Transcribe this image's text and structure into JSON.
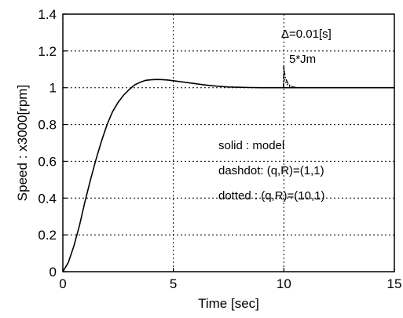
{
  "chart_data": {
    "type": "line",
    "xlabel": "Time [sec]",
    "ylabel": "Speed  : x3000[rpm]",
    "xlim": [
      0,
      15
    ],
    "ylim": [
      0,
      1.4
    ],
    "x_ticks": [
      0,
      5,
      10,
      15
    ],
    "y_ticks": [
      0,
      0.2,
      0.4,
      0.6,
      0.8,
      1,
      1.2,
      1.4
    ],
    "x_tick_labels": [
      "0",
      "5",
      "10",
      "15"
    ],
    "y_tick_labels": [
      "0",
      "0.2",
      "0.4",
      "0.6",
      "0.8",
      "1",
      "1.2",
      "1.4"
    ],
    "grid": true,
    "annotations": {
      "delta": "Δ=0.01[s]",
      "jm": "5*Jm",
      "legend_solid": "solid  : model",
      "legend_dashdot": "dashdot: (q,R)=(1,1)",
      "legend_dotted": "dotted  : (q,R)=(10,1)"
    },
    "series": [
      {
        "style": "solid",
        "x": [
          0,
          0.25,
          0.5,
          0.75,
          1,
          1.25,
          1.5,
          1.75,
          2,
          2.25,
          2.5,
          2.75,
          3,
          3.25,
          3.5,
          3.75,
          4,
          4.25,
          4.5,
          4.75,
          5,
          5.5,
          6,
          6.5,
          7,
          7.5,
          8,
          8.5,
          9,
          9.5,
          10,
          11,
          12,
          13,
          14,
          15
        ],
        "y": [
          0,
          0.05,
          0.14,
          0.25,
          0.38,
          0.5,
          0.61,
          0.71,
          0.8,
          0.87,
          0.92,
          0.96,
          0.99,
          1.015,
          1.03,
          1.04,
          1.043,
          1.045,
          1.044,
          1.042,
          1.038,
          1.03,
          1.022,
          1.014,
          1.008,
          1.004,
          1.002,
          1.001,
          1.0,
          1.0,
          1.0,
          1.0,
          1.0,
          1.0,
          1.0,
          1.0
        ]
      },
      {
        "style": "dashdot",
        "x": [
          9.98,
          10.0,
          10.02,
          10.06,
          10.12,
          10.2,
          10.3,
          10.4,
          10.5,
          10.65,
          10.8
        ],
        "y": [
          1.0,
          1.12,
          1.09,
          1.06,
          1.04,
          1.02,
          1.01,
          1.004,
          1.002,
          1.0,
          1.0
        ]
      },
      {
        "style": "dotted",
        "x": [
          9.98,
          10.0,
          10.03,
          10.08,
          10.15,
          10.25,
          10.35,
          10.5,
          10.7
        ],
        "y": [
          1.0,
          1.06,
          1.045,
          1.03,
          1.018,
          1.008,
          1.003,
          1.001,
          1.0
        ]
      }
    ]
  }
}
